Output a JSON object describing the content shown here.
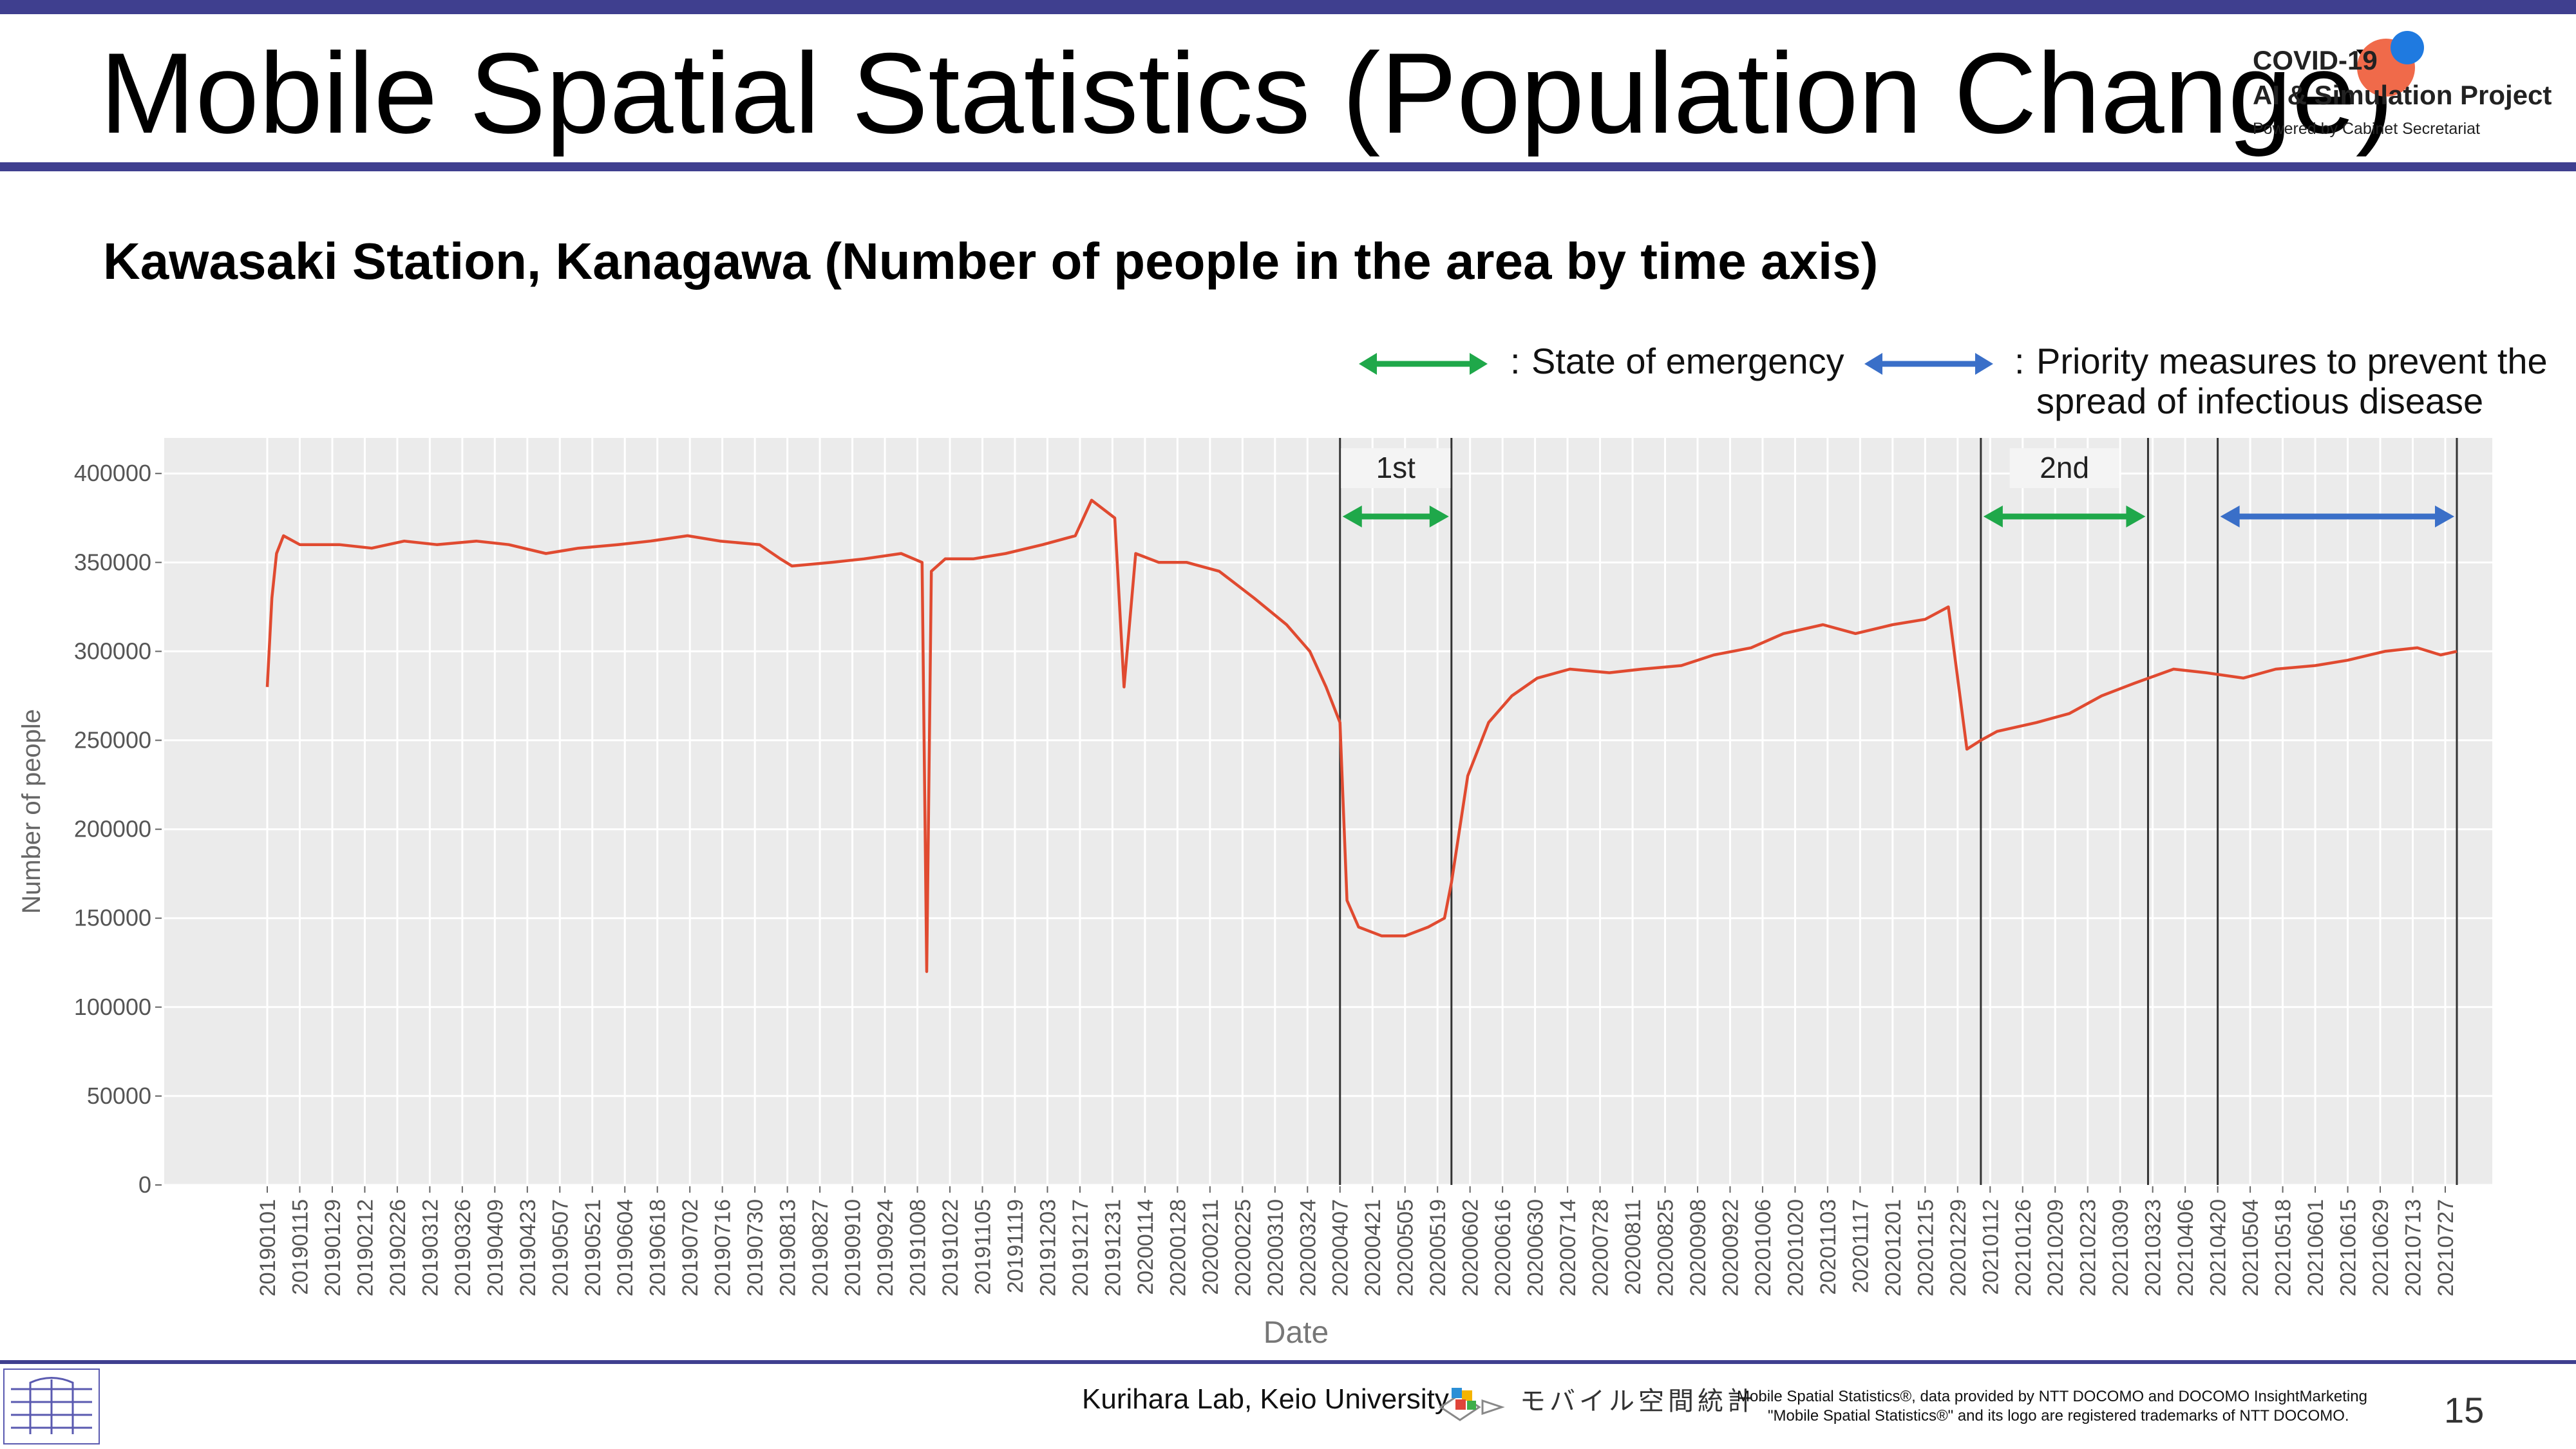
{
  "header": {
    "title": "Mobile Spatial Statistics (Population Change)",
    "logo_line1": "COVID-19",
    "logo_line2": "AI & Simulation Project",
    "logo_line3": "Powered by Cabinet Secretariat"
  },
  "subtitle": "Kawasaki Station, Kanagawa (Number of people in the area by time axis)",
  "legend": {
    "emergency": "State of emergency",
    "priority_line1": "Priority measures to prevent the",
    "priority_line2": "spread of infectious disease",
    "separator": ":"
  },
  "colors": {
    "line": "#e04a30",
    "emergency_arrow": "#1fa84a",
    "priority_arrow": "#3a6fc8",
    "plot_bg": "#ebebeb",
    "grid": "#ffffff",
    "brand_bar": "#3f3f8f"
  },
  "chart_data": {
    "type": "line",
    "xlabel": "Date",
    "ylabel": "Number of people",
    "ylim": [
      0,
      420000
    ],
    "yticks": [
      0,
      50000,
      100000,
      150000,
      200000,
      250000,
      300000,
      350000,
      400000
    ],
    "ytick_labels": [
      "0",
      "50000",
      "100000",
      "150000",
      "200000",
      "250000",
      "300000",
      "350000",
      "400000"
    ],
    "x_start": "2019-01-01",
    "x_end": "2021-08-01",
    "xtick_labels": [
      "20190101",
      "20190115",
      "20190129",
      "20190212",
      "20190226",
      "20190312",
      "20190326",
      "20190409",
      "20190423",
      "20190507",
      "20190521",
      "20190604",
      "20190618",
      "20190702",
      "20190716",
      "20190730",
      "20190813",
      "20190827",
      "20190910",
      "20190924",
      "20191008",
      "20191022",
      "20191105",
      "20191119",
      "20191203",
      "20191217",
      "20191231",
      "20200114",
      "20200128",
      "20200211",
      "20200225",
      "20200310",
      "20200324",
      "20200407",
      "20200421",
      "20200505",
      "20200519",
      "20200602",
      "20200616",
      "20200630",
      "20200714",
      "20200728",
      "20200811",
      "20200825",
      "20200908",
      "20200922",
      "20201006",
      "20201020",
      "20201103",
      "20201117",
      "20201201",
      "20201215",
      "20201229",
      "20210112",
      "20210126",
      "20210209",
      "20210223",
      "20210309",
      "20210323",
      "20210406",
      "20210420",
      "20210504",
      "20210518",
      "20210601",
      "20210615",
      "20210629",
      "20210713",
      "20210727"
    ],
    "grid": true,
    "series": [
      {
        "x": [
          "2019-01-01",
          "2019-01-03",
          "2019-01-05",
          "2019-01-08",
          "2019-01-15",
          "2019-02-01",
          "2019-02-15",
          "2019-03-01",
          "2019-03-15",
          "2019-04-01",
          "2019-04-15",
          "2019-05-01",
          "2019-05-15",
          "2019-06-01",
          "2019-06-15",
          "2019-07-01",
          "2019-07-15",
          "2019-08-01",
          "2019-08-10",
          "2019-08-15",
          "2019-09-01",
          "2019-09-15",
          "2019-10-01",
          "2019-10-10",
          "2019-10-12",
          "2019-10-14",
          "2019-10-20",
          "2019-11-01",
          "2019-11-15",
          "2019-12-01",
          "2019-12-15",
          "2019-12-22",
          "2020-01-01",
          "2020-01-05",
          "2020-01-10",
          "2020-01-20",
          "2020-02-01",
          "2020-02-15",
          "2020-03-01",
          "2020-03-15",
          "2020-03-25",
          "2020-04-01",
          "2020-04-04",
          "2020-04-07",
          "2020-04-10",
          "2020-04-15",
          "2020-04-25",
          "2020-05-05",
          "2020-05-15",
          "2020-05-22",
          "2020-05-25",
          "2020-06-01",
          "2020-06-10",
          "2020-06-20",
          "2020-07-01",
          "2020-07-15",
          "2020-08-01",
          "2020-08-15",
          "2020-09-01",
          "2020-09-15",
          "2020-10-01",
          "2020-10-15",
          "2020-11-01",
          "2020-11-15",
          "2020-12-01",
          "2020-12-15",
          "2020-12-25",
          "2020-12-30",
          "2021-01-02",
          "2021-01-08",
          "2021-01-15",
          "2021-02-01",
          "2021-02-15",
          "2021-03-01",
          "2021-03-15",
          "2021-04-01",
          "2021-04-15",
          "2021-05-01",
          "2021-05-15",
          "2021-06-01",
          "2021-06-15",
          "2021-07-01",
          "2021-07-15",
          "2021-07-25",
          "2021-08-01"
        ],
        "y": [
          280000,
          330000,
          355000,
          365000,
          360000,
          360000,
          358000,
          362000,
          360000,
          362000,
          360000,
          355000,
          358000,
          360000,
          362000,
          365000,
          362000,
          360000,
          352000,
          348000,
          350000,
          352000,
          355000,
          350000,
          120000,
          345000,
          352000,
          352000,
          355000,
          360000,
          365000,
          385000,
          375000,
          280000,
          355000,
          350000,
          350000,
          345000,
          330000,
          315000,
          300000,
          280000,
          270000,
          260000,
          160000,
          145000,
          140000,
          140000,
          145000,
          150000,
          170000,
          230000,
          260000,
          275000,
          285000,
          290000,
          288000,
          290000,
          292000,
          298000,
          302000,
          310000,
          315000,
          310000,
          315000,
          318000,
          325000,
          275000,
          245000,
          250000,
          255000,
          260000,
          265000,
          275000,
          282000,
          290000,
          288000,
          285000,
          290000,
          292000,
          295000,
          300000,
          302000,
          298000,
          300000
        ]
      }
    ],
    "annotations": [
      {
        "label": "1st",
        "type": "State of emergency",
        "start": "2020-04-07",
        "end": "2020-05-25"
      },
      {
        "label": "2nd",
        "type": "State of emergency",
        "start": "2021-01-08",
        "end": "2021-03-21"
      },
      {
        "label": "",
        "type": "Priority measures to prevent the spread of infectious disease",
        "start": "2021-04-20",
        "end": "2021-08-01"
      }
    ]
  },
  "footer": {
    "credit": "Kurihara Lab, Keio University",
    "mobile_text": "モバイル空間統計",
    "note_line1": "Mobile Spatial Statistics®, data provided by NTT DOCOMO and DOCOMO InsightMarketing",
    "note_line2": "\"Mobile Spatial Statistics®\" and its logo are registered trademarks of NTT DOCOMO.",
    "page_number": "15"
  }
}
